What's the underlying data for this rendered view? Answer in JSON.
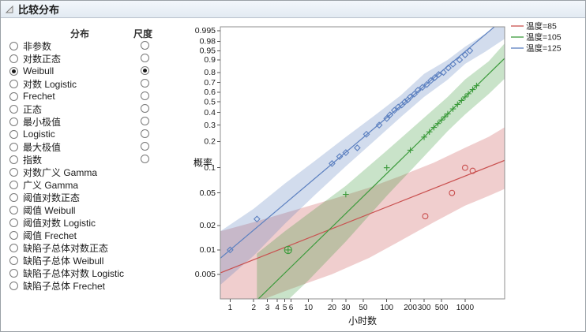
{
  "panel": {
    "title": "比较分布",
    "columns": {
      "distribution": "分布",
      "scale": "尺度"
    }
  },
  "distributions": [
    {
      "label": "非参数",
      "has_scale": true
    },
    {
      "label": "对数正态",
      "has_scale": true
    },
    {
      "label": "Weibull",
      "has_scale": true
    },
    {
      "label": "对数 Logistic",
      "has_scale": true
    },
    {
      "label": "Frechet",
      "has_scale": true
    },
    {
      "label": "正态",
      "has_scale": true
    },
    {
      "label": "最小极值",
      "has_scale": true
    },
    {
      "label": "Logistic",
      "has_scale": true
    },
    {
      "label": "最大极值",
      "has_scale": true
    },
    {
      "label": "指数",
      "has_scale": true
    },
    {
      "label": "对数广义 Gamma",
      "has_scale": false
    },
    {
      "label": "广义 Gamma",
      "has_scale": false
    },
    {
      "label": "阈值对数正态",
      "has_scale": false
    },
    {
      "label": "阈值 Weibull",
      "has_scale": false
    },
    {
      "label": "阈值对数 Logistic",
      "has_scale": false
    },
    {
      "label": "阈值 Frechet",
      "has_scale": false
    },
    {
      "label": "缺陷子总体对数正态",
      "has_scale": false
    },
    {
      "label": "缺陷子总体 Weibull",
      "has_scale": false
    },
    {
      "label": "缺陷子总体对数 Logistic",
      "has_scale": false
    },
    {
      "label": "缺陷子总体 Frechet",
      "has_scale": false
    }
  ],
  "selected_distribution": "Weibull",
  "selected_scale_index": 2,
  "chart_data": {
    "type": "scatter",
    "title": "",
    "xlabel": "小时数",
    "ylabel": "概率",
    "x_axis": {
      "scale": "log",
      "min": 0.75,
      "max": 3200
    },
    "y_axis": {
      "transform": "weibull-probability",
      "z_min": -6.0,
      "z_max": 1.78
    },
    "x_ticks": [
      1,
      2,
      3,
      4,
      5,
      6,
      10,
      20,
      30,
      50,
      100,
      200,
      300,
      500,
      1000
    ],
    "y_ticks": [
      0.995,
      0.98,
      0.95,
      0.9,
      0.8,
      0.7,
      0.6,
      0.5,
      0.4,
      0.3,
      0.2,
      0.1,
      0.05,
      0.02,
      0.01,
      0.005
    ],
    "legend_position": "top-right",
    "band_opacity": 0.28,
    "series": [
      {
        "name": "温度=85",
        "color": "#C9504F",
        "marker": "circle",
        "points": [
          [
            310,
            0.026
          ],
          [
            680,
            0.05
          ],
          [
            1000,
            0.1
          ],
          [
            1250,
            0.092
          ]
        ],
        "line": [
          [
            0.75,
            0.0052
          ],
          [
            3200,
            0.122
          ]
        ],
        "band": [
          [
            0.75,
            0.0016,
            0.017
          ],
          [
            2,
            0.0022,
            0.022
          ],
          [
            6,
            0.0033,
            0.03
          ],
          [
            20,
            0.005,
            0.042
          ],
          [
            60,
            0.008,
            0.058
          ],
          [
            150,
            0.013,
            0.08
          ],
          [
            400,
            0.022,
            0.115
          ],
          [
            1000,
            0.035,
            0.17
          ],
          [
            2000,
            0.046,
            0.225
          ],
          [
            3200,
            0.056,
            0.285
          ]
        ]
      },
      {
        "name": "温度=105",
        "color": "#3C9B3C",
        "marker": "plus",
        "points": [
          [
            5.5,
            0.01
          ],
          [
            30,
            0.048
          ],
          [
            100,
            0.1
          ],
          [
            200,
            0.16
          ],
          [
            300,
            0.224
          ],
          [
            350,
            0.255
          ],
          [
            400,
            0.284
          ],
          [
            450,
            0.311
          ],
          [
            500,
            0.338
          ],
          [
            550,
            0.364
          ],
          [
            600,
            0.388
          ],
          [
            700,
            0.433
          ],
          [
            800,
            0.475
          ],
          [
            900,
            0.514
          ],
          [
            1000,
            0.55
          ],
          [
            1100,
            0.583
          ],
          [
            1250,
            0.627
          ],
          [
            1400,
            0.667
          ]
        ],
        "circled": [
          [
            5.5,
            0.01
          ]
        ],
        "line": [
          [
            0.75,
            0.000857
          ],
          [
            3200,
            0.91
          ]
        ],
        "band": [
          [
            2.2,
            0.0009,
            0.009
          ],
          [
            5,
            0.0022,
            0.017
          ],
          [
            10,
            0.0042,
            0.028
          ],
          [
            30,
            0.0127,
            0.061
          ],
          [
            100,
            0.046,
            0.158
          ],
          [
            300,
            0.136,
            0.356
          ],
          [
            600,
            0.26,
            0.55
          ],
          [
            1000,
            0.384,
            0.732
          ],
          [
            2000,
            0.58,
            0.89
          ],
          [
            3200,
            0.74,
            0.975
          ]
        ]
      },
      {
        "name": "温度=125",
        "color": "#5C80C0",
        "marker": "diamond",
        "points": [
          [
            1,
            0.01
          ],
          [
            2.2,
            0.024
          ],
          [
            20,
            0.112
          ],
          [
            25,
            0.135
          ],
          [
            30,
            0.15
          ],
          [
            42,
            0.17
          ],
          [
            55,
            0.24
          ],
          [
            80,
            0.3
          ],
          [
            100,
            0.35
          ],
          [
            110,
            0.38
          ],
          [
            125,
            0.42
          ],
          [
            140,
            0.45
          ],
          [
            155,
            0.47
          ],
          [
            170,
            0.5
          ],
          [
            185,
            0.52
          ],
          [
            200,
            0.55
          ],
          [
            225,
            0.58
          ],
          [
            250,
            0.62
          ],
          [
            285,
            0.65
          ],
          [
            325,
            0.68
          ],
          [
            365,
            0.72
          ],
          [
            410,
            0.75
          ],
          [
            460,
            0.78
          ],
          [
            530,
            0.8
          ],
          [
            610,
            0.84
          ],
          [
            700,
            0.87
          ],
          [
            850,
            0.9
          ],
          [
            1000,
            0.93
          ],
          [
            1150,
            0.95
          ]
        ],
        "line": [
          [
            0.75,
            0.0079
          ],
          [
            3200,
            0.9995
          ]
        ],
        "band": [
          [
            0.75,
            0.0037,
            0.017
          ],
          [
            2,
            0.0085,
            0.032
          ],
          [
            5,
            0.021,
            0.065
          ],
          [
            12,
            0.047,
            0.12
          ],
          [
            30,
            0.104,
            0.224
          ],
          [
            70,
            0.205,
            0.375
          ],
          [
            150,
            0.36,
            0.565
          ],
          [
            300,
            0.55,
            0.787
          ],
          [
            600,
            0.73,
            0.9
          ],
          [
            1000,
            0.872,
            0.965
          ],
          [
            1800,
            0.945,
            0.992
          ],
          [
            3200,
            0.985,
            0.9993
          ]
        ]
      }
    ]
  }
}
